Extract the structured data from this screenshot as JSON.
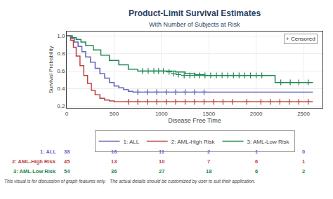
{
  "chart_data": {
    "type": "step",
    "title": "Product-Limit Survival Estimates",
    "subtitle": "With Number of Subjects at Risk",
    "x_label": "Disease Free Time",
    "y_label": "Survival Probability",
    "xlim": [
      0,
      2700
    ],
    "ylim": [
      0.18,
      1.05
    ],
    "xticks": [
      0,
      500,
      1000,
      1500,
      2000,
      2500
    ],
    "yticks": [
      0.2,
      0.4,
      0.6,
      0.8,
      {
        "value": 1.0,
        "label": "1.0"
      }
    ],
    "grid": true,
    "legend": "bottom",
    "annotation": "+ Censored",
    "series": [
      {
        "name": "1: ALL",
        "color": "#6666bb",
        "marker": "plus",
        "x": [
          0,
          50,
          80,
          120,
          160,
          200,
          250,
          300,
          350,
          400,
          450,
          500,
          550,
          600,
          650,
          700,
          800,
          900,
          1000,
          1100,
          1200,
          1300,
          1400,
          1500,
          1600,
          1700,
          1800,
          1900,
          2000,
          2100,
          2200,
          2300,
          2400,
          2500,
          2600
        ],
        "values": [
          1.0,
          0.97,
          0.93,
          0.88,
          0.82,
          0.76,
          0.7,
          0.63,
          0.57,
          0.52,
          0.47,
          0.43,
          0.41,
          0.39,
          0.37,
          0.36,
          0.36,
          0.36,
          0.36,
          0.36,
          0.36,
          0.36,
          0.36,
          0.36,
          0.36,
          0.36,
          0.36,
          0.36,
          0.36,
          0.36,
          0.36,
          0.36,
          0.36,
          0.36,
          0.36
        ],
        "censor_x": [
          750,
          850,
          950,
          1050,
          1150,
          1250,
          1350,
          1450
        ],
        "censor_y": [
          0.36,
          0.36,
          0.36,
          0.36,
          0.36,
          0.36,
          0.36,
          0.36
        ]
      },
      {
        "name": "2: AML-High Risk",
        "color": "#bb4444",
        "marker": "plus",
        "x": [
          0,
          40,
          70,
          100,
          140,
          180,
          220,
          260,
          300,
          350,
          400,
          450,
          500,
          550,
          600,
          700,
          800,
          900,
          1000,
          1200,
          1400,
          1600,
          1800,
          2000,
          2100,
          2200,
          2300,
          2400,
          2500,
          2600
        ],
        "values": [
          1.0,
          0.95,
          0.87,
          0.77,
          0.66,
          0.55,
          0.46,
          0.38,
          0.33,
          0.29,
          0.27,
          0.26,
          0.25,
          0.25,
          0.25,
          0.25,
          0.25,
          0.25,
          0.25,
          0.25,
          0.25,
          0.25,
          0.25,
          0.25,
          0.25,
          0.25,
          0.25,
          0.25,
          0.25,
          0.25
        ],
        "censor_x": [
          650,
          750,
          850,
          950,
          1050,
          1150,
          1250,
          1350,
          1450,
          1550,
          1650,
          1750,
          1900,
          2050,
          2150,
          2250,
          2350,
          2450,
          2550
        ],
        "censor_y": [
          0.25,
          0.25,
          0.25,
          0.25,
          0.25,
          0.25,
          0.25,
          0.25,
          0.25,
          0.25,
          0.25,
          0.25,
          0.25,
          0.25,
          0.25,
          0.25,
          0.25,
          0.25,
          0.25
        ]
      },
      {
        "name": "3: AML-Low Risk",
        "color": "#228855",
        "marker": "plus",
        "x": [
          0,
          60,
          100,
          150,
          200,
          280,
          360,
          450,
          550,
          650,
          750,
          850,
          950,
          1050,
          1150,
          1250,
          1350,
          1450,
          1550,
          1650,
          1750,
          1850,
          1950,
          2050,
          2150,
          2200,
          2250,
          2300,
          2400,
          2500,
          2600
        ],
        "values": [
          1.0,
          0.98,
          0.96,
          0.93,
          0.89,
          0.84,
          0.78,
          0.72,
          0.67,
          0.62,
          0.6,
          0.6,
          0.6,
          0.6,
          0.59,
          0.57,
          0.56,
          0.55,
          0.55,
          0.55,
          0.55,
          0.55,
          0.55,
          0.55,
          0.55,
          0.47,
          0.47,
          0.47,
          0.47,
          0.47,
          0.47
        ],
        "censor_x": [
          800,
          860,
          920,
          970,
          1020,
          1080,
          1130,
          1180,
          1240,
          1300,
          1350,
          1400,
          1460,
          1520,
          1580,
          1640,
          1700,
          1760,
          1820,
          1880,
          1940,
          2000,
          2060,
          2260,
          2360,
          2450,
          2550
        ],
        "censor_y": [
          0.6,
          0.6,
          0.6,
          0.6,
          0.6,
          0.59,
          0.57,
          0.56,
          0.55,
          0.55,
          0.55,
          0.55,
          0.55,
          0.55,
          0.55,
          0.55,
          0.55,
          0.55,
          0.55,
          0.55,
          0.55,
          0.55,
          0.55,
          0.47,
          0.47,
          0.47,
          0.47
        ]
      }
    ],
    "at_risk": {
      "times": [
        0,
        500,
        1000,
        1500,
        2000,
        2500
      ],
      "rows": [
        {
          "name": "1: ALL",
          "color": "#6666bb",
          "values": [
            38,
            16,
            11,
            2,
            1,
            0
          ]
        },
        {
          "name": "2: AML-High Risk",
          "color": "#bb4444",
          "values": [
            45,
            13,
            10,
            7,
            6,
            1
          ]
        },
        {
          "name": "3: AML-Low Risk",
          "color": "#228855",
          "values": [
            54,
            36,
            27,
            18,
            6,
            2
          ]
        }
      ]
    },
    "footnote": "This visual is for discussion of graph features only.   The actual details should be customized by user to suit their application."
  }
}
